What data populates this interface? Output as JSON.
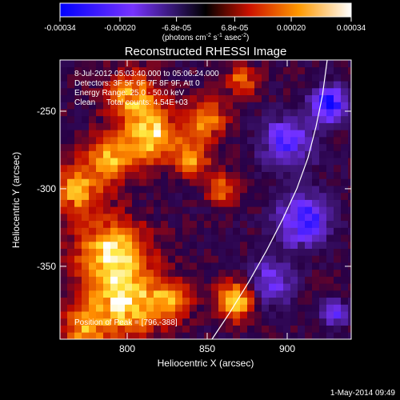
{
  "colorbar": {
    "ticks": [
      {
        "value": -0.00034,
        "label": "-0.00034"
      },
      {
        "value": -0.0002,
        "label": "-0.00020"
      },
      {
        "value": -6.8e-05,
        "label": "-6.8e-05"
      },
      {
        "value": 6.8e-05,
        "label": "6.8e-05"
      },
      {
        "value": 0.0002,
        "label": "0.00020"
      },
      {
        "value": 0.00034,
        "label": "0.00034"
      }
    ],
    "range": [
      -0.00034,
      0.00034
    ],
    "units_main": "(photons cm",
    "units_sup1": "-2",
    "units_mid": " s",
    "units_sup2": "-1",
    "units_tail": " asec",
    "units_sup3": "-2",
    "units_end": ")"
  },
  "chart_data": {
    "type": "heatmap",
    "title": "Reconstructed RHESSI Image",
    "xlabel": "Heliocentric X (arcsec)",
    "ylabel": "Heliocentric Y (arcsec)",
    "xlim": [
      758,
      940
    ],
    "ylim": [
      -397,
      -217
    ],
    "x_ticks": [
      800,
      850,
      900
    ],
    "y_ticks": [
      -350,
      -300,
      -250
    ],
    "annotations": [
      "8-Jul-2012 05:03:40.000 to 05:06:24.000",
      "Detectors: 3F 5F 6F 7F 8F 9F, Att 0",
      "Energy Range: 25.0 - 50.0 keV",
      "Clean     Total counts: 4.54E+03"
    ],
    "peak_label": "Position of Peak = [796,-388]",
    "peak": {
      "x": 796,
      "y": -388
    },
    "limb": [
      {
        "x": 853,
        "y": -397
      },
      {
        "x": 864,
        "y": -380
      },
      {
        "x": 876,
        "y": -360
      },
      {
        "x": 887,
        "y": -340
      },
      {
        "x": 897,
        "y": -320
      },
      {
        "x": 906,
        "y": -300
      },
      {
        "x": 913,
        "y": -280
      },
      {
        "x": 918,
        "y": -260
      },
      {
        "x": 922,
        "y": -240
      },
      {
        "x": 925,
        "y": -217
      }
    ],
    "blobs": [
      {
        "x": 772,
        "y": -390,
        "r": 12,
        "v": 0.0002
      },
      {
        "x": 798,
        "y": -372,
        "r": 22,
        "v": 0.0003
      },
      {
        "x": 790,
        "y": -340,
        "r": 20,
        "v": 0.00026
      },
      {
        "x": 768,
        "y": -300,
        "r": 16,
        "v": 0.00022
      },
      {
        "x": 790,
        "y": -280,
        "r": 14,
        "v": 0.00024
      },
      {
        "x": 815,
        "y": -265,
        "r": 16,
        "v": 0.00028
      },
      {
        "x": 803,
        "y": -240,
        "r": 15,
        "v": 0.00022
      },
      {
        "x": 840,
        "y": -280,
        "r": 11,
        "v": 0.0002
      },
      {
        "x": 850,
        "y": -255,
        "r": 12,
        "v": 0.0002
      },
      {
        "x": 860,
        "y": -300,
        "r": 9,
        "v": 0.00018
      },
      {
        "x": 868,
        "y": -372,
        "r": 11,
        "v": 0.0003
      },
      {
        "x": 828,
        "y": -372,
        "r": 11,
        "v": 0.00018
      },
      {
        "x": 872,
        "y": -230,
        "r": 9,
        "v": 0.00016
      },
      {
        "x": 900,
        "y": -270,
        "r": 16,
        "v": -0.00022
      },
      {
        "x": 910,
        "y": -320,
        "r": 16,
        "v": -0.00026
      },
      {
        "x": 926,
        "y": -245,
        "r": 11,
        "v": -0.0003
      },
      {
        "x": 890,
        "y": -360,
        "r": 14,
        "v": -0.00018
      },
      {
        "x": 930,
        "y": -380,
        "r": 8,
        "v": -0.0002
      }
    ]
  },
  "footer_timestamp": "1-May-2014 09:49"
}
